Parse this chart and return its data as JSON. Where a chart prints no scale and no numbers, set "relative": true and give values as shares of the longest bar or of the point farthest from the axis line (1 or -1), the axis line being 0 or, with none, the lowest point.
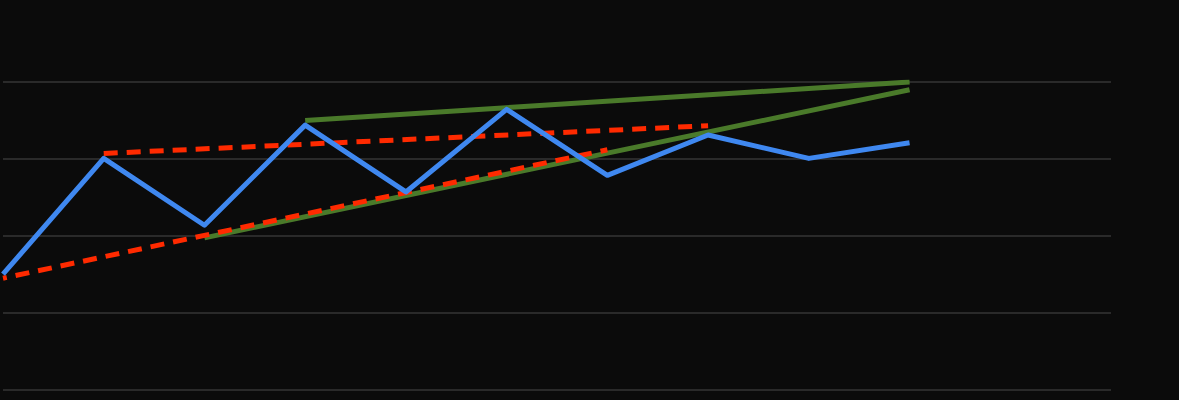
{
  "chart_data": {
    "type": "line",
    "relative": true,
    "grid": "y",
    "legend": false,
    "marker": "none",
    "categories": [
      null,
      null,
      null,
      null,
      null,
      null,
      null,
      null,
      null,
      null,
      null,
      null
    ],
    "series": [
      {
        "color": "#3f88f0",
        "values": [
          0.376,
          0.752,
          0.535,
          0.86,
          0.643,
          0.911,
          0.697,
          0.828,
          0.752,
          0.803,
          null,
          null
        ]
      },
      {
        "color": "#ff2a00",
        "line_style": "dashed",
        "values": [
          null,
          0.768,
          null,
          null,
          null,
          null,
          null,
          0.858,
          null,
          null,
          null,
          null
        ]
      },
      {
        "color": "#ff2a00",
        "line_style": "dashed",
        "values": [
          0.363,
          null,
          null,
          null,
          null,
          null,
          0.78,
          null,
          null,
          null,
          null,
          null
        ]
      },
      {
        "color": "#4a7a2a",
        "values": [
          null,
          null,
          null,
          0.875,
          null,
          null,
          null,
          null,
          null,
          1,
          null,
          null
        ]
      },
      {
        "color": "#4a7a2a",
        "values": [
          null,
          null,
          0.494,
          null,
          null,
          null,
          null,
          null,
          null,
          0.975,
          null,
          null
        ]
      }
    ]
  }
}
